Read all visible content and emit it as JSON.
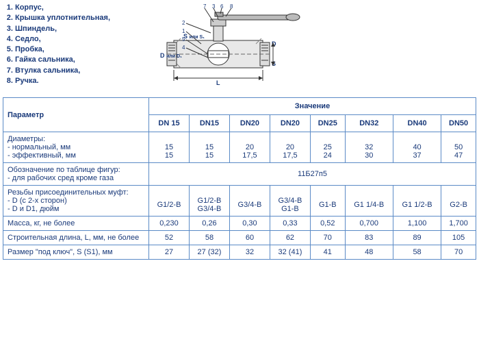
{
  "parts": [
    "Корпус,",
    "Крышка уплотнительная,",
    "Шпиндель,",
    "Седло,",
    "Пробка,",
    "Гайка сальника,",
    "Втулка сальника,",
    "Ручка."
  ],
  "diagram_labels": {
    "top_nums": [
      "7",
      "3",
      "6",
      "8"
    ],
    "side_nums": [
      "2",
      "1",
      "5",
      "4"
    ],
    "S": "S",
    "S1": "или S₁",
    "D": "D",
    "D1": "или D₁",
    "L": "L"
  },
  "table": {
    "header_main": "Значение",
    "param_label": "Параметр",
    "columns": [
      "DN 15",
      "DN15",
      "DN20",
      "DN20",
      "DN25",
      "DN32",
      "DN40",
      "DN50"
    ],
    "rows": [
      {
        "label": "Диаметры:",
        "sub": [
          {
            "label": "- нормальный, мм",
            "vals": [
              "15",
              "15",
              "20",
              "20",
              "25",
              "32",
              "40",
              "50"
            ]
          },
          {
            "label": "- эффективный, мм",
            "vals": [
              "15",
              "15",
              "17,5",
              "17,5",
              "24",
              "30",
              "37",
              "47"
            ]
          }
        ]
      }
    ],
    "designation": {
      "label": "Обозначение по таблице фигур:",
      "sub_label": "- для рабочих сред кроме газа",
      "value": "11Б27п5"
    },
    "thread": {
      "label": "Резьбы присоединительных муфт:",
      "sub1": "- D (с 2-х сторон)",
      "sub2": "- D и D1, дюйм",
      "vals": [
        "G1/2-B",
        "G1/2-B\nG3/4-B",
        "G3/4-B",
        "G3/4-B\nG1-B",
        "G1-B",
        "G1 1/4-B",
        "G1 1/2-B",
        "G2-B"
      ]
    },
    "mass": {
      "label": "Масса, кг, не более",
      "vals": [
        "0,230",
        "0,26",
        "0,30",
        "0,33",
        "0,52",
        "0,700",
        "1,100",
        "1,700"
      ]
    },
    "length": {
      "label": "Строительная длина, L, мм, не более",
      "vals": [
        "52",
        "58",
        "60",
        "62",
        "70",
        "83",
        "89",
        "105"
      ]
    },
    "wrench": {
      "label": "Размер \"под ключ\", S (S1), мм",
      "vals": [
        "27",
        "27 (32)",
        "32",
        "32 (41)",
        "41",
        "48",
        "58",
        "70"
      ]
    }
  },
  "colors": {
    "text": "#1a3a7a",
    "border": "#5a8ac6",
    "diagram_stroke": "#333333",
    "diagram_fill": "#d0d0d0",
    "hatch": "#888888"
  }
}
